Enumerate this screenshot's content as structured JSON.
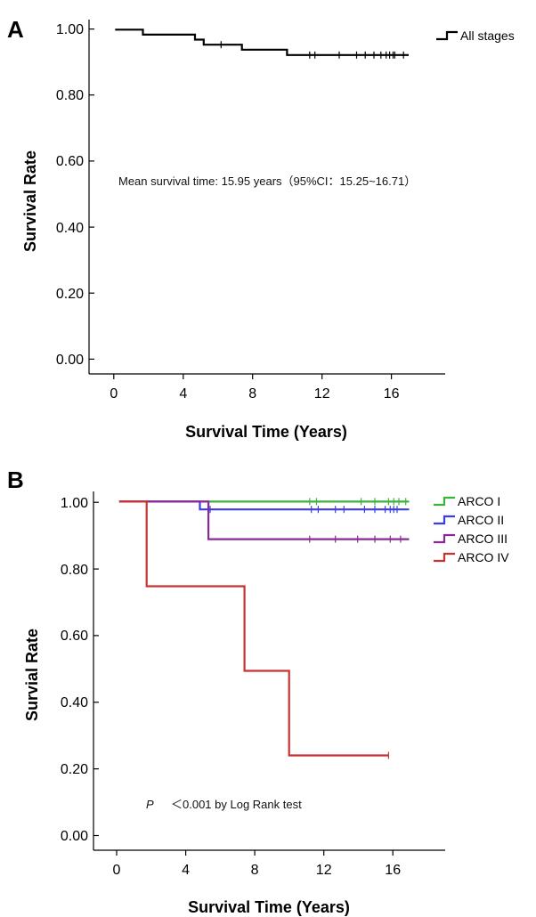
{
  "chart_data": [
    {
      "panel": "A",
      "type": "line",
      "step": true,
      "xlabel": "Survival Time (Years)",
      "ylabel": "Survival Rate",
      "xlim": [
        -1.5,
        19
      ],
      "ylim": [
        -0.03,
        1.03
      ],
      "xticks": [
        0,
        4,
        8,
        12,
        16
      ],
      "xtick_labels": [
        "0",
        "4",
        "8",
        "12",
        "16"
      ],
      "yticks": [
        0.0,
        0.2,
        0.4,
        0.6,
        0.8,
        1.0
      ],
      "ytick_labels": [
        "0.00",
        "0.20",
        "0.40",
        "0.60",
        "0.80",
        "1.00"
      ],
      "grid": false,
      "legend_position": "top-right",
      "annotation": "Mean survival time: 15.95 years（95%CI：15.25~16.71）",
      "series": [
        {
          "name": "All stages",
          "color": "#000000",
          "points": [
            [
              0,
              1.0
            ],
            [
              1.6,
              1.0
            ],
            [
              1.6,
              0.985
            ],
            [
              4.6,
              0.985
            ],
            [
              4.6,
              0.97
            ],
            [
              5.1,
              0.97
            ],
            [
              5.1,
              0.955
            ],
            [
              7.3,
              0.955
            ],
            [
              7.3,
              0.94
            ],
            [
              9.9,
              0.94
            ],
            [
              9.9,
              0.924
            ],
            [
              16.9,
              0.924
            ]
          ],
          "censors": [
            6.1,
            11.2,
            11.5,
            12.9,
            13.9,
            14.4,
            14.9,
            15.3,
            15.6,
            15.8,
            16.0,
            16.1,
            16.6
          ]
        }
      ]
    },
    {
      "panel": "B",
      "type": "line",
      "step": true,
      "xlabel": "Survival Time (Years)",
      "ylabel": "Survial Rate",
      "xlim": [
        -1.5,
        19
      ],
      "ylim": [
        -0.03,
        1.03
      ],
      "xticks": [
        0,
        4,
        8,
        12,
        16
      ],
      "xtick_labels": [
        "0",
        "4",
        "8",
        "12",
        "16"
      ],
      "yticks": [
        0.0,
        0.2,
        0.4,
        0.6,
        0.8,
        1.0
      ],
      "ytick_labels": [
        "0.00",
        "0.20",
        "0.40",
        "0.60",
        "0.80",
        "1.00"
      ],
      "grid": false,
      "legend_position": "top-right",
      "annotation_p": "P",
      "annotation_text": "＜0.001 by Log Rank test",
      "series": [
        {
          "name": "ARCO I",
          "color": "#3cb43c",
          "points": [
            [
              0,
              1.0
            ],
            [
              16.9,
              1.0
            ]
          ],
          "censors": [
            11.1,
            11.5,
            14.1,
            14.9,
            15.7,
            16.0,
            16.3,
            16.7
          ]
        },
        {
          "name": "ARCO II",
          "color": "#3c3ce6",
          "points": [
            [
              0,
              1.0
            ],
            [
              4.7,
              1.0
            ],
            [
              4.7,
              0.977
            ],
            [
              16.9,
              0.977
            ]
          ],
          "censors": [
            5.3,
            11.2,
            11.6,
            12.6,
            13.1,
            14.3,
            14.9,
            15.5,
            15.8,
            16.0,
            16.2
          ]
        },
        {
          "name": "ARCO III",
          "color": "#8c2896",
          "points": [
            [
              0,
              1.0
            ],
            [
              5.2,
              1.0
            ],
            [
              5.2,
              0.889
            ],
            [
              16.9,
              0.889
            ]
          ],
          "censors": [
            11.1,
            12.6,
            13.9,
            14.9,
            15.8,
            16.4
          ]
        },
        {
          "name": "ARCO IV",
          "color": "#c83232",
          "points": [
            [
              0,
              1.0
            ],
            [
              1.6,
              1.0
            ],
            [
              1.6,
              0.75
            ],
            [
              7.3,
              0.75
            ],
            [
              7.3,
              0.5
            ],
            [
              9.9,
              0.5
            ],
            [
              9.9,
              0.25
            ],
            [
              15.7,
              0.25
            ]
          ],
          "censors": [
            15.7
          ]
        }
      ]
    }
  ]
}
